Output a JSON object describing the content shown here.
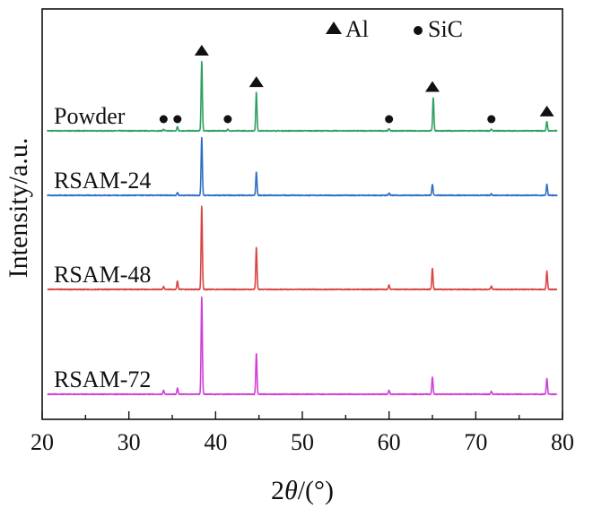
{
  "chart_data": {
    "type": "line",
    "title": "",
    "xlabel": "2θ/(°)",
    "ylabel": "Intensity/a.u.",
    "xlim": [
      20,
      80
    ],
    "xticks": [
      20,
      30,
      40,
      50,
      60,
      70,
      80
    ],
    "grid": false,
    "legend": [
      {
        "name": "Al",
        "marker": "triangle"
      },
      {
        "name": "SiC",
        "marker": "circle"
      }
    ],
    "series": [
      {
        "name": "Powder",
        "color": "#2ea060",
        "offset": 3,
        "peaks": [
          {
            "x": 34.0,
            "h": 0.02
          },
          {
            "x": 35.6,
            "h": 0.06
          },
          {
            "x": 38.4,
            "h": 1.0
          },
          {
            "x": 41.4,
            "h": 0.02
          },
          {
            "x": 44.7,
            "h": 0.55
          },
          {
            "x": 60.0,
            "h": 0.03
          },
          {
            "x": 65.1,
            "h": 0.48
          },
          {
            "x": 71.8,
            "h": 0.02
          },
          {
            "x": 78.2,
            "h": 0.13
          }
        ]
      },
      {
        "name": "RSAM-24",
        "color": "#2e6fc4",
        "offset": 2,
        "peaks": [
          {
            "x": 35.6,
            "h": 0.04
          },
          {
            "x": 38.4,
            "h": 0.83
          },
          {
            "x": 44.7,
            "h": 0.33
          },
          {
            "x": 60.0,
            "h": 0.03
          },
          {
            "x": 65.0,
            "h": 0.16
          },
          {
            "x": 71.8,
            "h": 0.02
          },
          {
            "x": 78.2,
            "h": 0.16
          }
        ]
      },
      {
        "name": "RSAM-48",
        "color": "#d94545",
        "offset": 1,
        "peaks": [
          {
            "x": 34.0,
            "h": 0.04
          },
          {
            "x": 35.6,
            "h": 0.12
          },
          {
            "x": 38.4,
            "h": 1.2
          },
          {
            "x": 44.7,
            "h": 0.6
          },
          {
            "x": 60.0,
            "h": 0.06
          },
          {
            "x": 65.0,
            "h": 0.3
          },
          {
            "x": 71.8,
            "h": 0.05
          },
          {
            "x": 78.2,
            "h": 0.26
          }
        ]
      },
      {
        "name": "RSAM-72",
        "color": "#d040d8",
        "offset": 0,
        "peaks": [
          {
            "x": 34.0,
            "h": 0.06
          },
          {
            "x": 35.6,
            "h": 0.09
          },
          {
            "x": 38.4,
            "h": 1.4
          },
          {
            "x": 44.7,
            "h": 0.59
          },
          {
            "x": 60.0,
            "h": 0.06
          },
          {
            "x": 65.0,
            "h": 0.25
          },
          {
            "x": 71.8,
            "h": 0.04
          },
          {
            "x": 78.2,
            "h": 0.23
          }
        ]
      }
    ],
    "markers": [
      {
        "type": "triangle",
        "phase": "Al",
        "x": 38.4
      },
      {
        "type": "triangle",
        "phase": "Al",
        "x": 44.7
      },
      {
        "type": "triangle",
        "phase": "Al",
        "x": 65.0
      },
      {
        "type": "triangle",
        "phase": "Al",
        "x": 78.2
      },
      {
        "type": "circle",
        "phase": "SiC",
        "x": 34.0
      },
      {
        "type": "circle",
        "phase": "SiC",
        "x": 35.6
      },
      {
        "type": "circle",
        "phase": "SiC",
        "x": 41.4
      },
      {
        "type": "circle",
        "phase": "SiC",
        "x": 60.0
      },
      {
        "type": "circle",
        "phase": "SiC",
        "x": 71.8
      }
    ]
  }
}
